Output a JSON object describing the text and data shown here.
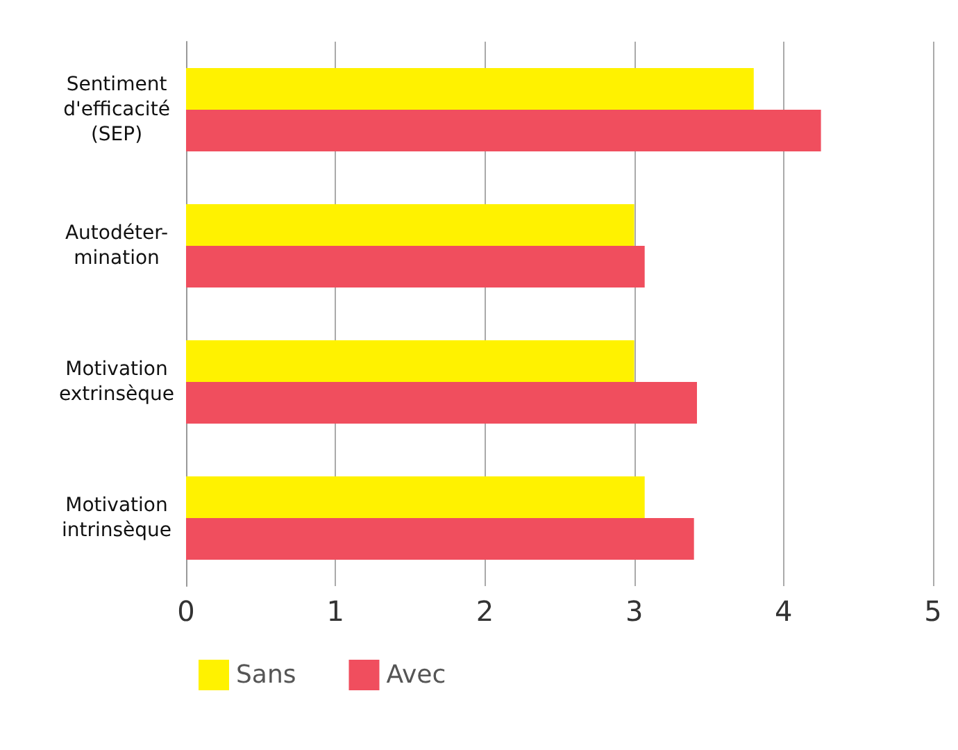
{
  "chart_data": {
    "type": "bar",
    "orientation": "horizontal",
    "categories": [
      "Sentiment\nd'efficacité\n(SEP)",
      "Autodéter-\nmination",
      "Motivation\nextrinsèque",
      "Motivation\nintrinsèque"
    ],
    "series": [
      {
        "name": "Sans",
        "color": "#fff200",
        "values": [
          3.8,
          3.0,
          3.0,
          3.07
        ]
      },
      {
        "name": "Avec",
        "color": "#f04e5e",
        "values": [
          4.25,
          3.07,
          3.42,
          3.4
        ]
      }
    ],
    "xlim": [
      0,
      5
    ],
    "xticks": [
      0,
      1,
      2,
      3,
      4,
      5
    ],
    "grid": "x",
    "legend": "bottom left"
  }
}
